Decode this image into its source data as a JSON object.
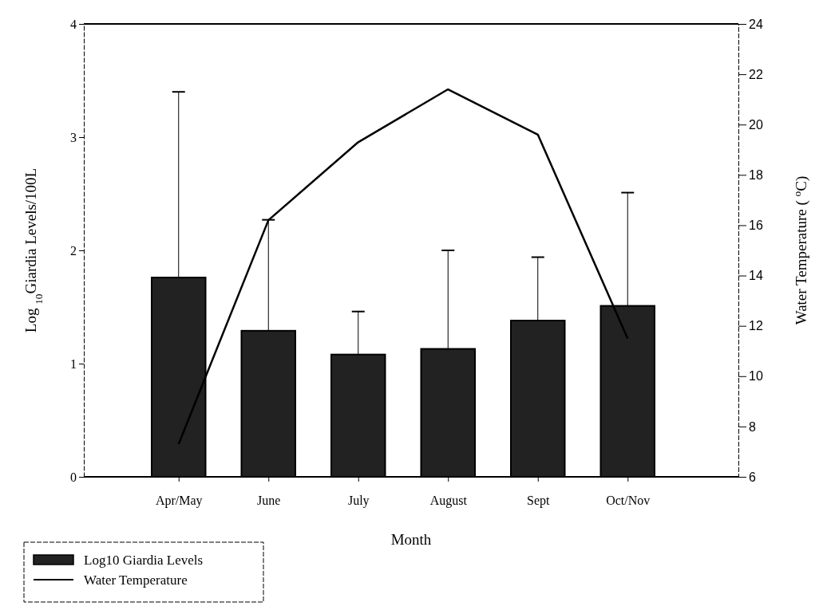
{
  "chart_data": {
    "type": "bar",
    "xlabel": "Month",
    "ylabel": "Log $_{10}$Giardia Levels/100L",
    "y2label": "Water Temperature ( $^{o}$C)",
    "categories": [
      "Apr/May",
      "June",
      "July",
      "August",
      "Sept",
      "Oct/Nov"
    ],
    "ylim": [
      0,
      4
    ],
    "yticks": [
      0,
      1,
      2,
      3,
      4
    ],
    "y2lim": [
      6,
      24
    ],
    "y2ticks": [
      6,
      8,
      10,
      12,
      14,
      16,
      18,
      20,
      22,
      24
    ],
    "legend": "bottom left",
    "grid": false,
    "series": [
      {
        "name": "Log10 Giardia Levels",
        "color": "#222222",
        "values": [
          1.76,
          1.29,
          1.08,
          1.13,
          1.38,
          1.51
        ],
        "errors": [
          [
            1.76,
            3.4
          ],
          [
            1.29,
            2.27
          ],
          [
            1.08,
            1.46
          ],
          [
            1.13,
            2.0
          ],
          [
            1.38,
            1.94
          ],
          [
            1.51,
            2.51
          ]
        ]
      },
      {
        "name": "Water Temperature",
        "type": "line",
        "axis": "y2",
        "color": "#000000",
        "marker": "none",
        "line_style": "solid",
        "values": [
          7.3,
          16.2,
          19.3,
          21.4,
          19.6,
          11.5
        ]
      }
    ]
  }
}
